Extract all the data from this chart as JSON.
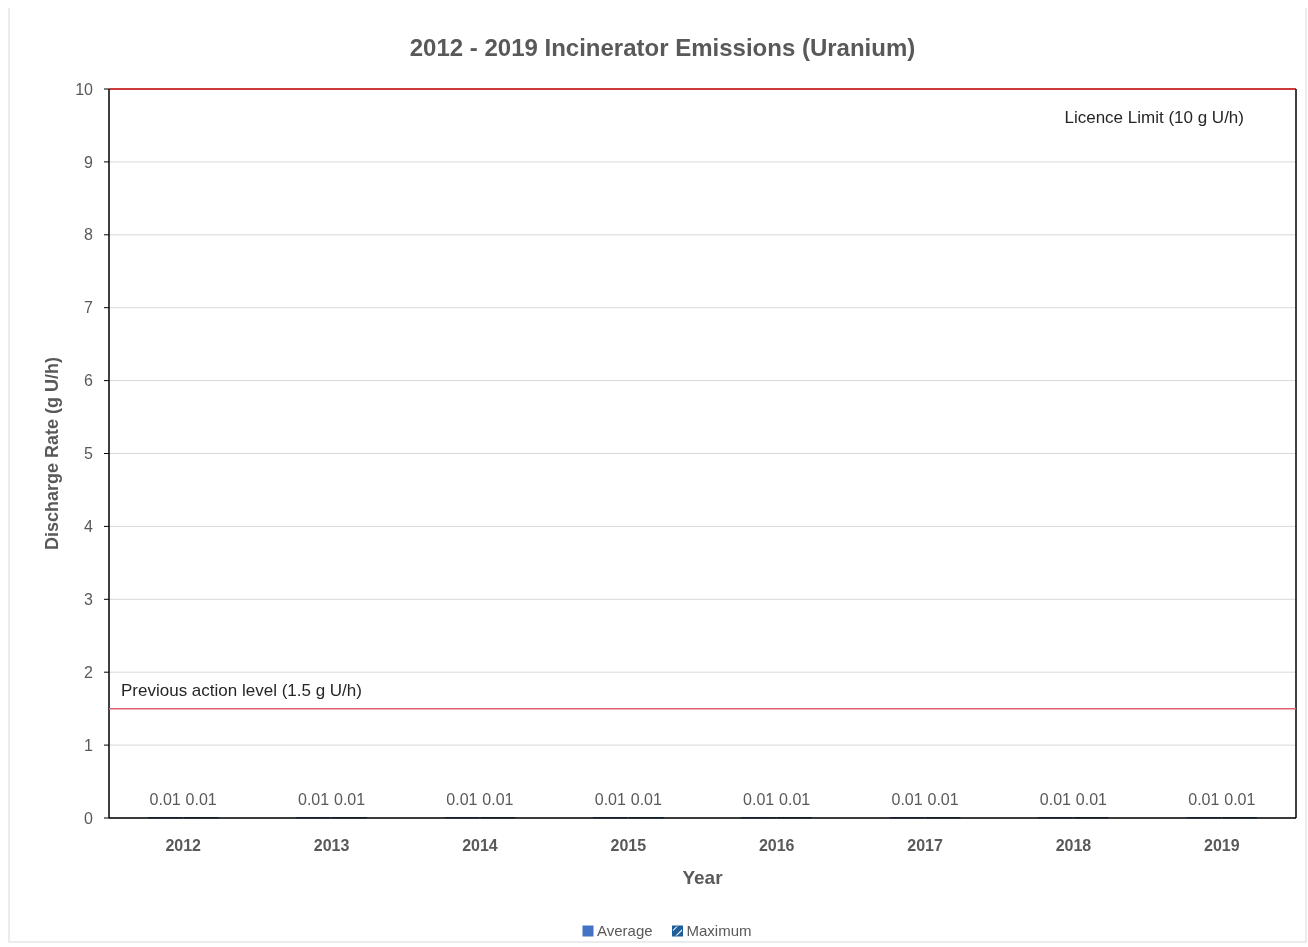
{
  "chart_data": {
    "type": "bar",
    "title": "2012 - 2019 Incinerator Emissions (Uranium)",
    "xlabel": "Year",
    "ylabel": "Discharge Rate (g U/h)",
    "categories": [
      "2012",
      "2013",
      "2014",
      "2015",
      "2016",
      "2017",
      "2018",
      "2019"
    ],
    "series": [
      {
        "name": "Average",
        "color": "#4472c4",
        "values": [
          0.01,
          0.01,
          0.01,
          0.01,
          0.01,
          0.01,
          0.01,
          0.01
        ]
      },
      {
        "name": "Maximum",
        "color": "#1f5f99",
        "values": [
          0.01,
          0.01,
          0.01,
          0.01,
          0.01,
          0.01,
          0.01,
          0.01
        ]
      }
    ],
    "ylim": [
      0,
      10
    ],
    "yticks": [
      0,
      1,
      2,
      3,
      4,
      5,
      6,
      7,
      8,
      9,
      10
    ],
    "grid": "y",
    "legend": "bottom",
    "data_labels": true,
    "ref_lines": [
      {
        "axis": "y",
        "value": 10,
        "label": "Licence Limit (10 g U/h)",
        "color": "#c00000"
      },
      {
        "axis": "y",
        "value": 1.5,
        "label": "Previous action level (1.5 g U/h)",
        "color": "#e06070"
      }
    ]
  }
}
